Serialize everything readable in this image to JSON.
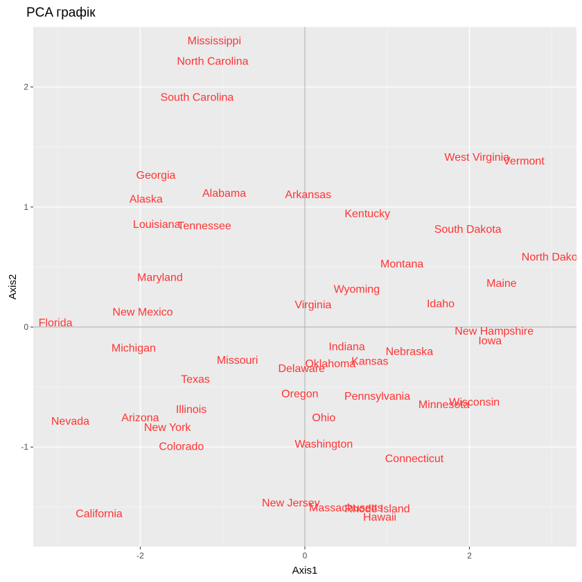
{
  "chart_data": {
    "type": "scatter",
    "title": "PCA графік",
    "xlabel": "Axis1",
    "ylabel": "Axis2",
    "xlim": [
      -3.3,
      3.3
    ],
    "ylim": [
      -1.83,
      2.5
    ],
    "x_ticks": [
      -2,
      0,
      2
    ],
    "x_tick_labels": [
      "-2",
      "0",
      "2"
    ],
    "y_ticks": [
      -1,
      0,
      1,
      2
    ],
    "y_tick_labels": [
      "-1",
      "0",
      "1",
      "2"
    ],
    "grid": true,
    "reference_lines": {
      "x": 0,
      "y": 0
    },
    "label_color": "#ff3333",
    "panel_background": "#ebebeb",
    "points": [
      {
        "label": "Mississippi",
        "x": -1.1,
        "y": 2.39
      },
      {
        "label": "North Carolina",
        "x": -1.12,
        "y": 2.22
      },
      {
        "label": "South Carolina",
        "x": -1.31,
        "y": 1.92
      },
      {
        "label": "West Virginia",
        "x": 2.09,
        "y": 1.42
      },
      {
        "label": "Vermont",
        "x": 2.66,
        "y": 1.39
      },
      {
        "label": "Georgia",
        "x": -1.81,
        "y": 1.27
      },
      {
        "label": "Alabama",
        "x": -0.98,
        "y": 1.12
      },
      {
        "label": "Arkansas",
        "x": 0.04,
        "y": 1.11
      },
      {
        "label": "Alaska",
        "x": -1.93,
        "y": 1.07
      },
      {
        "label": "Kentucky",
        "x": 0.76,
        "y": 0.95
      },
      {
        "label": "Louisiana",
        "x": -1.8,
        "y": 0.86
      },
      {
        "label": "Tennessee",
        "x": -1.22,
        "y": 0.85
      },
      {
        "label": "South Dakota",
        "x": 1.98,
        "y": 0.82
      },
      {
        "label": "North Dakota",
        "x": 3.03,
        "y": 0.59
      },
      {
        "label": "Montana",
        "x": 1.18,
        "y": 0.53
      },
      {
        "label": "Maryland",
        "x": -1.76,
        "y": 0.42
      },
      {
        "label": "Maine",
        "x": 2.39,
        "y": 0.37
      },
      {
        "label": "Wyoming",
        "x": 0.63,
        "y": 0.32
      },
      {
        "label": "Idaho",
        "x": 1.65,
        "y": 0.2
      },
      {
        "label": "Virginia",
        "x": 0.1,
        "y": 0.19
      },
      {
        "label": "New Mexico",
        "x": -1.97,
        "y": 0.13
      },
      {
        "label": "Florida",
        "x": -3.03,
        "y": 0.04
      },
      {
        "label": "New Hampshire",
        "x": 2.3,
        "y": -0.03
      },
      {
        "label": "Iowa",
        "x": 2.25,
        "y": -0.11
      },
      {
        "label": "Michigan",
        "x": -2.08,
        "y": -0.17
      },
      {
        "label": "Nebraska",
        "x": 1.27,
        "y": -0.2
      },
      {
        "label": "Indiana",
        "x": 0.51,
        "y": -0.16
      },
      {
        "label": "Kansas",
        "x": 0.79,
        "y": -0.28
      },
      {
        "label": "Oklahoma",
        "x": 0.31,
        "y": -0.3
      },
      {
        "label": "Missouri",
        "x": -0.82,
        "y": -0.27
      },
      {
        "label": "Delaware",
        "x": -0.04,
        "y": -0.34
      },
      {
        "label": "Texas",
        "x": -1.33,
        "y": -0.43
      },
      {
        "label": "Oregon",
        "x": -0.06,
        "y": -0.55
      },
      {
        "label": "Pennsylvania",
        "x": 0.88,
        "y": -0.57
      },
      {
        "label": "Wisconsin",
        "x": 2.06,
        "y": -0.62
      },
      {
        "label": "Minnesota",
        "x": 1.69,
        "y": -0.64
      },
      {
        "label": "Illinois",
        "x": -1.38,
        "y": -0.68
      },
      {
        "label": "Arizona",
        "x": -2.0,
        "y": -0.75
      },
      {
        "label": "Ohio",
        "x": 0.23,
        "y": -0.75
      },
      {
        "label": "Nevada",
        "x": -2.85,
        "y": -0.78
      },
      {
        "label": "New York",
        "x": -1.67,
        "y": -0.83
      },
      {
        "label": "Colorado",
        "x": -1.5,
        "y": -0.99
      },
      {
        "label": "Washington",
        "x": 0.23,
        "y": -0.97
      },
      {
        "label": "Connecticut",
        "x": 1.33,
        "y": -1.09
      },
      {
        "label": "New Jersey",
        "x": -0.17,
        "y": -1.46
      },
      {
        "label": "Massachusetts",
        "x": 0.5,
        "y": -1.5
      },
      {
        "label": "Rhode Island",
        "x": 0.88,
        "y": -1.51
      },
      {
        "label": "Hawaii",
        "x": 0.91,
        "y": -1.58
      },
      {
        "label": "California",
        "x": -2.5,
        "y": -1.55
      }
    ]
  }
}
